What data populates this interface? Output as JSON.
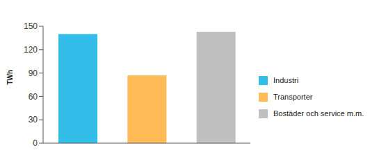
{
  "chart_data": {
    "type": "bar",
    "categories": [
      "Industri",
      "Transporter",
      "Bostäder och service m.m."
    ],
    "values": [
      140,
      87,
      143
    ],
    "colors": [
      "#33bde9",
      "#ffbb55",
      "#c0c0c0"
    ],
    "ylabel": "TWh",
    "ylim": [
      0,
      150
    ],
    "yticks": [
      0,
      30,
      60,
      90,
      120,
      150
    ],
    "grid": false,
    "legend": "right",
    "tick_labels": "y"
  }
}
